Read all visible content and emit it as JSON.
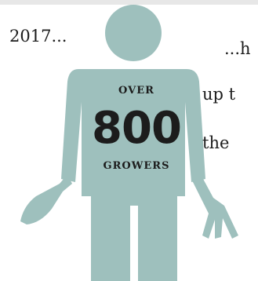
{
  "header_line": {
    "lead": "2017...",
    "continuation": "...h"
  },
  "side_text": {
    "line2": "up t",
    "line3": "the"
  },
  "figure": {
    "stat_prefix": "OVER",
    "stat_value": "800",
    "stat_label": "GROWERS",
    "icon": "person-with-trowel-and-fork-icon",
    "color": "#9ec0bd"
  }
}
